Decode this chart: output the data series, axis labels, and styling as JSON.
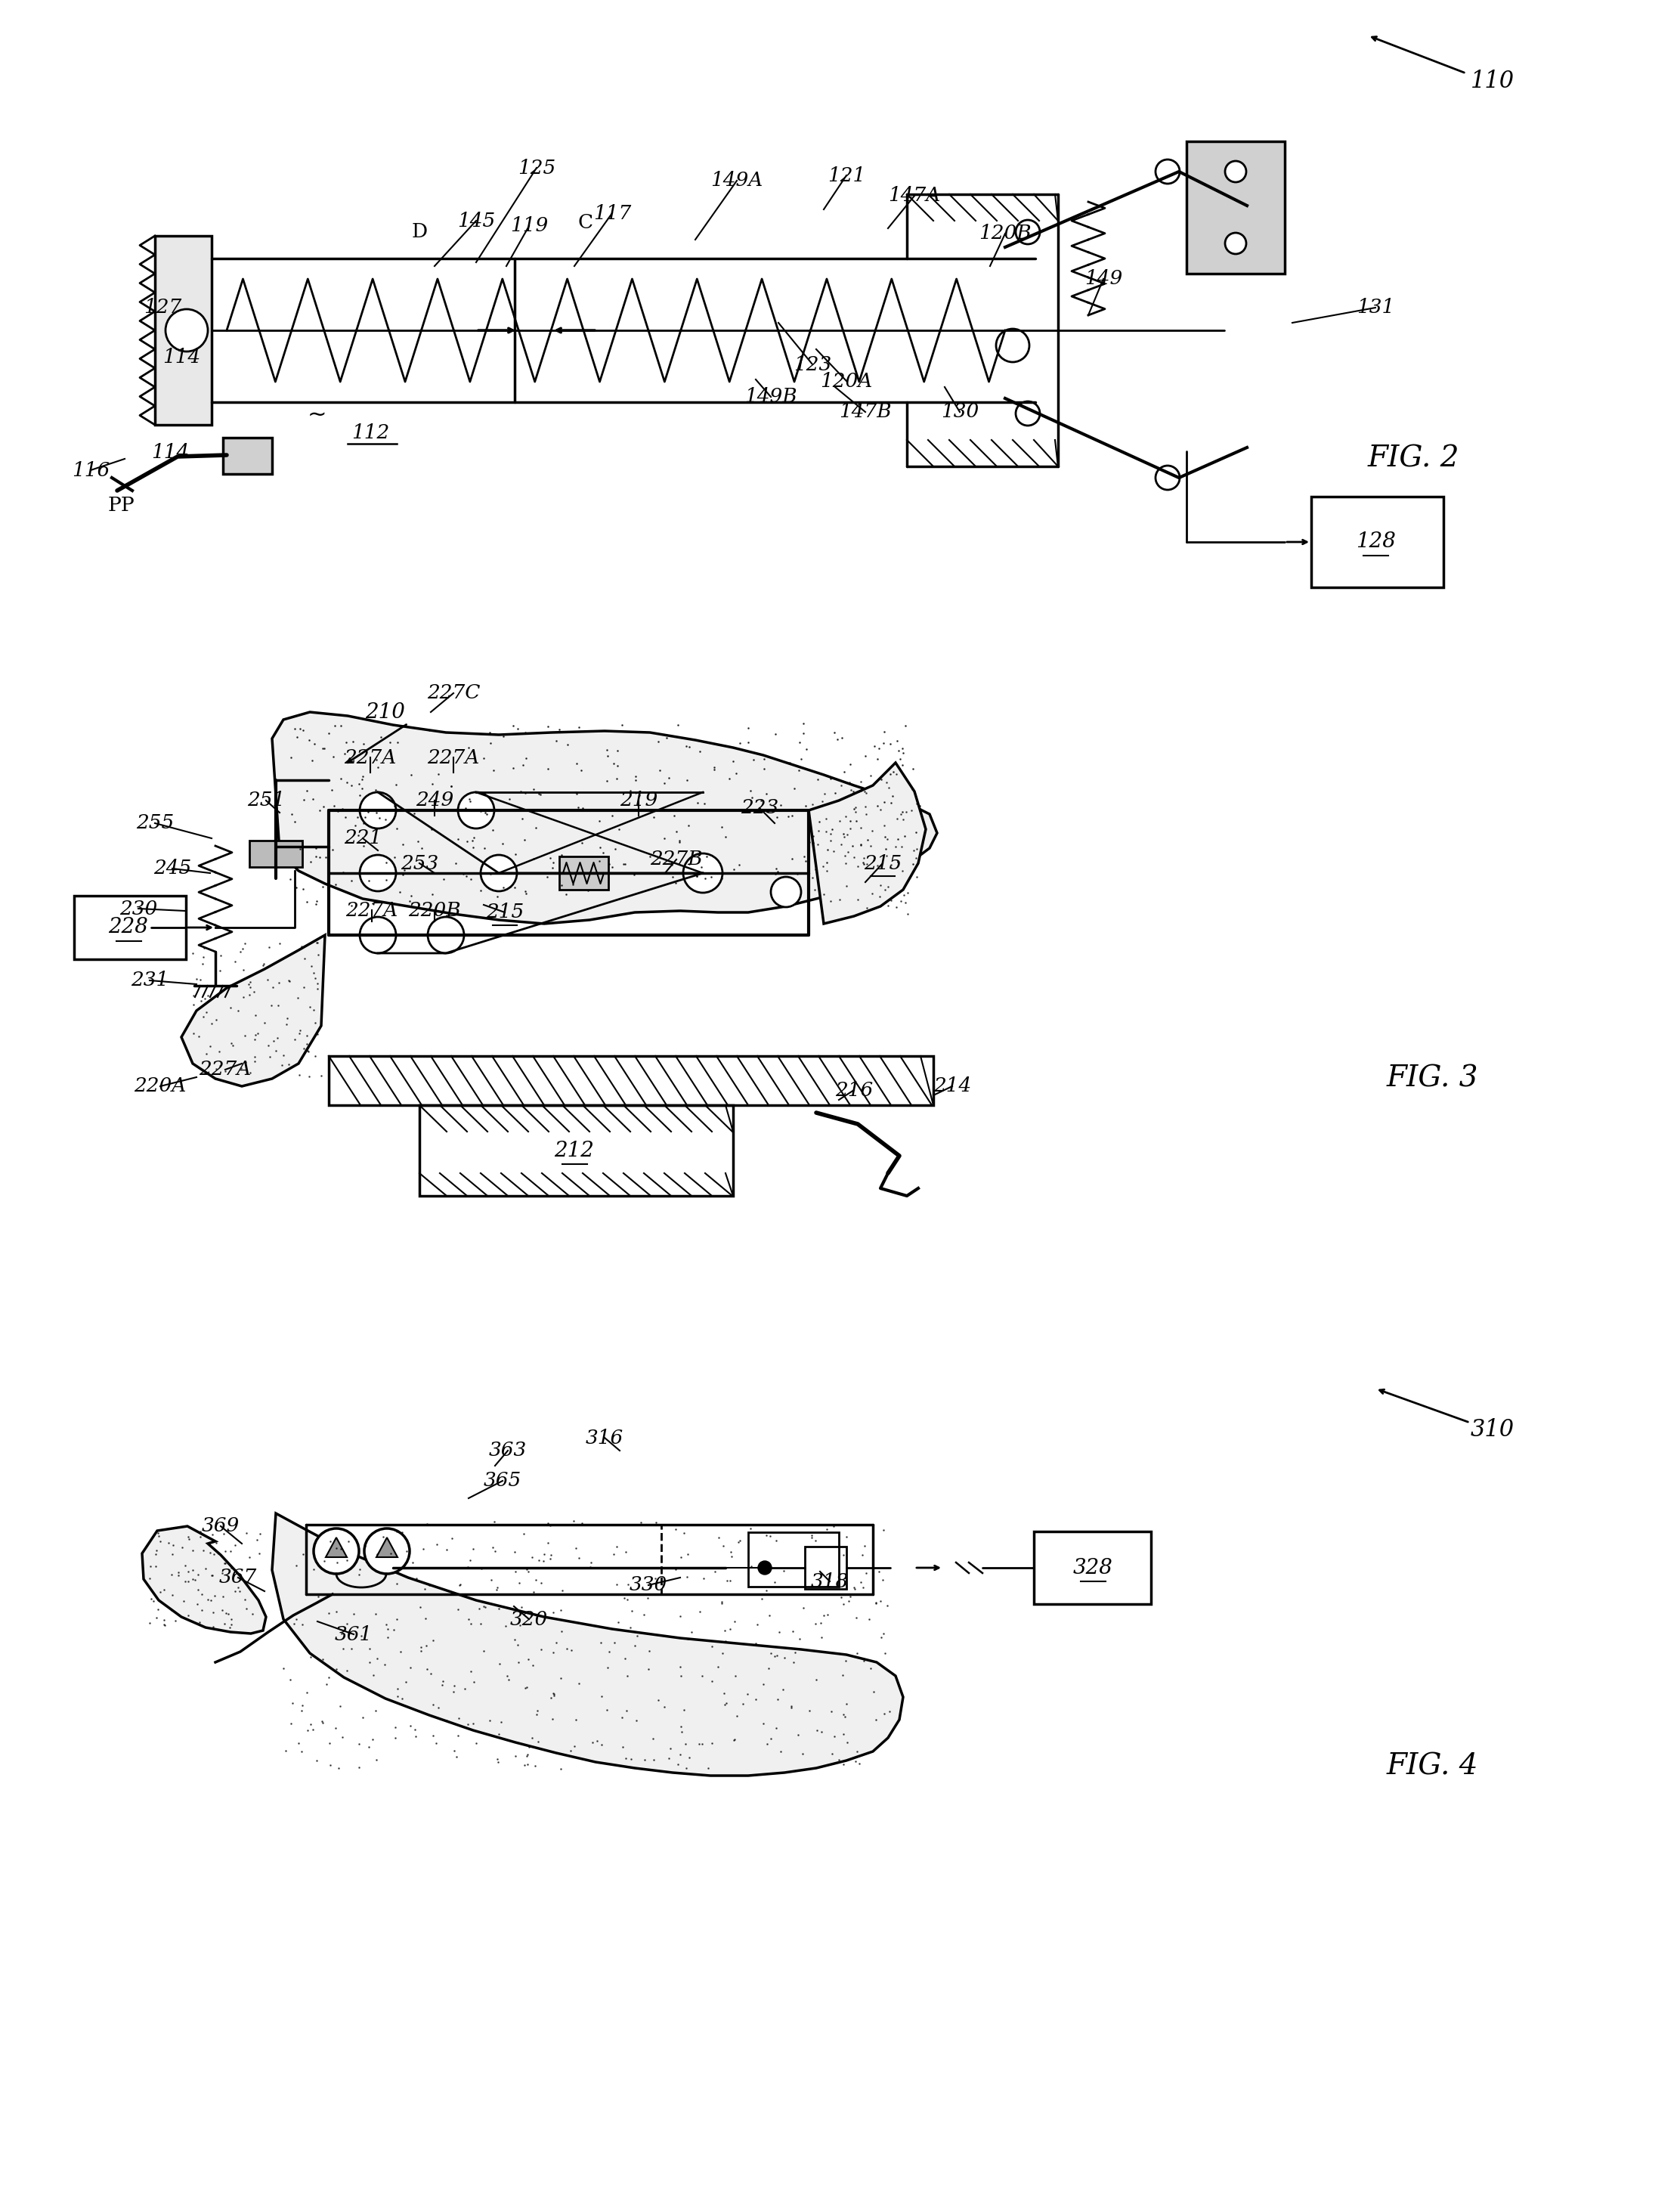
{
  "background_color": "#ffffff",
  "line_color": "#000000",
  "fig_width": 22.23,
  "fig_height": 29.17,
  "fig2_label": "FIG. 2",
  "fig3_label": "FIG. 3",
  "fig4_label": "FIG. 4",
  "fig2_refs": [
    "110",
    "125",
    "145",
    "117",
    "149A",
    "121",
    "147A",
    "127",
    "D",
    "119",
    "C",
    "120B",
    "149",
    "114",
    "112",
    "123",
    "120A",
    "131",
    "128",
    "149B",
    "147B",
    "130",
    "116",
    "PP"
  ],
  "fig3_refs": [
    "210",
    "227C",
    "227A",
    "251",
    "249",
    "219",
    "223",
    "215",
    "221",
    "255",
    "245",
    "253",
    "227B",
    "230",
    "228",
    "220B",
    "231",
    "220A",
    "212",
    "216",
    "214"
  ],
  "fig4_refs": [
    "363",
    "316",
    "310",
    "365",
    "369",
    "318",
    "367",
    "320",
    "328",
    "361",
    "330"
  ]
}
